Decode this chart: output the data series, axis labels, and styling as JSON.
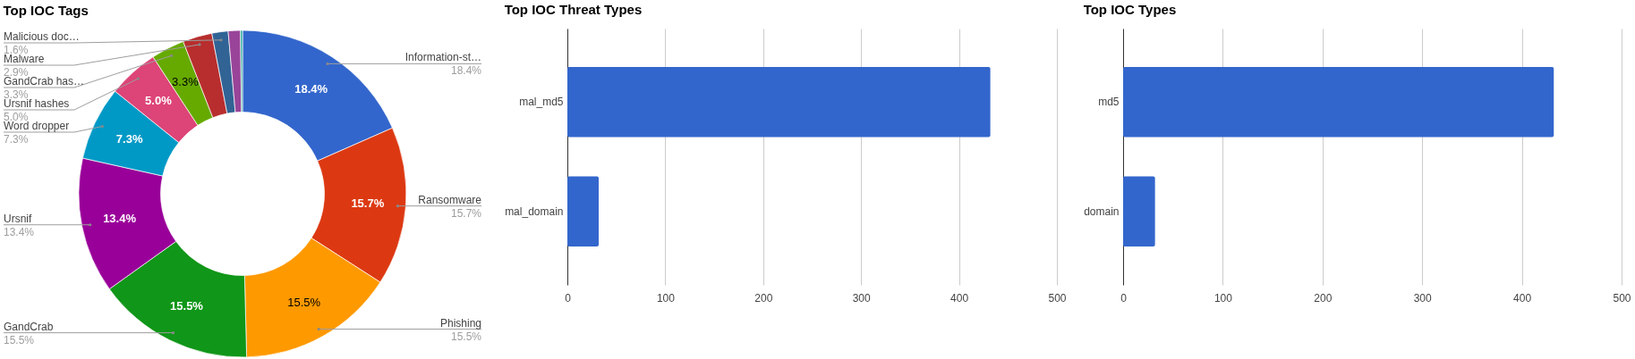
{
  "chart_data": [
    {
      "type": "donut",
      "title": "Top IOC Tags",
      "categories": [
        "Information-st…",
        "Ransomware",
        "Phishing",
        "GandCrab",
        "Ursnif",
        "Word dropper",
        "Ursnif hashes",
        "GandCrab has…",
        "Malware",
        "Malicious doc…",
        null,
        null
      ],
      "values": [
        18.4,
        15.7,
        15.5,
        15.5,
        13.4,
        7.3,
        5.0,
        3.3,
        2.9,
        1.6,
        1.2,
        0.2
      ],
      "colors": [
        "#3366cc",
        "#dc3912",
        "#ff9900",
        "#109618",
        "#990099",
        "#0099c6",
        "#dd4477",
        "#66aa00",
        "#b82e2e",
        "#316395",
        "#994499",
        "#22aa99"
      ],
      "value_labels": [
        "18.4%",
        "15.7%",
        "15.5%",
        "15.5%",
        "13.4%",
        "7.3%",
        "5.0%",
        "3.3%",
        "2.9%",
        "1.6%",
        null,
        null
      ]
    },
    {
      "type": "bar",
      "orientation": "horizontal",
      "title": "Top IOC Threat Types",
      "categories": [
        "mal_md5",
        "mal_domain"
      ],
      "values": [
        432,
        32
      ],
      "color": "#3366cc",
      "xlim": [
        0,
        500
      ],
      "xticks": [
        0,
        100,
        200,
        300,
        400,
        500
      ],
      "grid": "x"
    },
    {
      "type": "bar",
      "orientation": "horizontal",
      "title": "Top IOC Types",
      "categories": [
        "md5",
        "domain"
      ],
      "values": [
        432,
        32
      ],
      "color": "#3366cc",
      "xlim": [
        0,
        500
      ],
      "xticks": [
        0,
        100,
        200,
        300,
        400,
        500
      ],
      "grid": "x"
    }
  ]
}
